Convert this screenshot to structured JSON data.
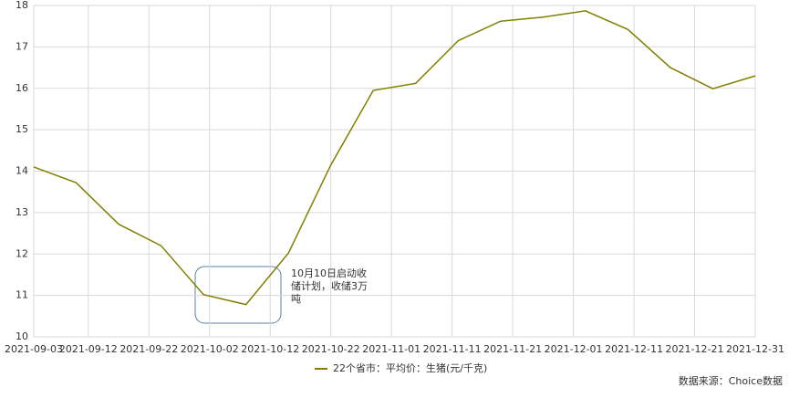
{
  "chart_data": {
    "type": "line",
    "x": [
      "2021-09-03",
      "2021-09-10",
      "2021-09-17",
      "2021-09-24",
      "2021-10-01",
      "2021-10-08",
      "2021-10-15",
      "2021-10-22",
      "2021-10-29",
      "2021-11-05",
      "2021-11-12",
      "2021-11-19",
      "2021-11-26",
      "2021-12-03",
      "2021-12-10",
      "2021-12-17",
      "2021-12-24",
      "2021-12-31"
    ],
    "series": [
      {
        "name": "22个省市：平均价：生猪(元/千克)",
        "color": "#808000",
        "values": [
          14.1,
          13.72,
          12.72,
          12.2,
          11.02,
          10.78,
          12.02,
          14.15,
          15.95,
          16.12,
          17.15,
          17.62,
          17.72,
          17.87,
          17.42,
          16.5,
          15.99,
          16.3
        ]
      }
    ],
    "xlim": [
      "2021-09-03",
      "2021-12-31"
    ],
    "xticks": [
      "2021-09-03",
      "2021-09-12",
      "2021-09-22",
      "2021-10-02",
      "2021-10-12",
      "2021-10-22",
      "2021-11-01",
      "2021-11-11",
      "2021-11-21",
      "2021-12-01",
      "2021-12-11",
      "2021-12-21",
      "2021-12-31"
    ],
    "ylim": [
      10,
      18
    ],
    "yticks": [
      10,
      11,
      12,
      13,
      14,
      15,
      16,
      17,
      18
    ],
    "grid": true,
    "annotation": [
      "10月10日启动收",
      "储计划，收储3万",
      "吨"
    ],
    "source": "数据来源：Choice数据"
  }
}
